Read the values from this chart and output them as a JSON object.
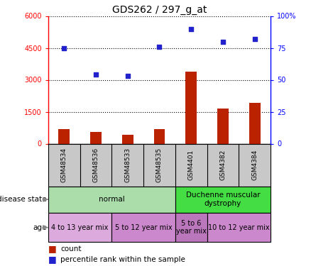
{
  "title": "GDS262 / 297_g_at",
  "samples": [
    "GSM48534",
    "GSM48536",
    "GSM48533",
    "GSM48535",
    "GSM4401",
    "GSM4382",
    "GSM4384"
  ],
  "count_values": [
    700,
    550,
    430,
    700,
    3380,
    1650,
    1920
  ],
  "percentile_values": [
    75,
    54,
    53,
    76,
    90,
    80,
    82
  ],
  "left_ylim": [
    0,
    6000
  ],
  "left_yticks": [
    0,
    1500,
    3000,
    4500,
    6000
  ],
  "left_yticklabels": [
    "0",
    "1500",
    "3000",
    "4500",
    "6000"
  ],
  "right_ylim": [
    0,
    100
  ],
  "right_yticks": [
    0,
    25,
    50,
    75,
    100
  ],
  "right_yticklabels": [
    "0",
    "25",
    "50",
    "75",
    "100%"
  ],
  "bar_color": "#bb2200",
  "scatter_color": "#2222cc",
  "background_color": "#ffffff",
  "grid_color": "#000000",
  "sample_bg_color": "#c8c8c8",
  "disease_groups": [
    {
      "label": "normal",
      "samples": [
        0,
        1,
        2,
        3
      ],
      "color": "#aaddaa"
    },
    {
      "label": "Duchenne muscular\ndystrophy",
      "samples": [
        4,
        5,
        6
      ],
      "color": "#44dd44"
    }
  ],
  "age_groups": [
    {
      "label": "4 to 13 year mix",
      "samples": [
        0,
        1
      ],
      "color": "#ddaadd"
    },
    {
      "label": "5 to 12 year mix",
      "samples": [
        2,
        3
      ],
      "color": "#cc88cc"
    },
    {
      "label": "5 to 6\nyear mix",
      "samples": [
        4
      ],
      "color": "#bb77bb"
    },
    {
      "label": "10 to 12 year mix",
      "samples": [
        5,
        6
      ],
      "color": "#cc88cc"
    }
  ]
}
